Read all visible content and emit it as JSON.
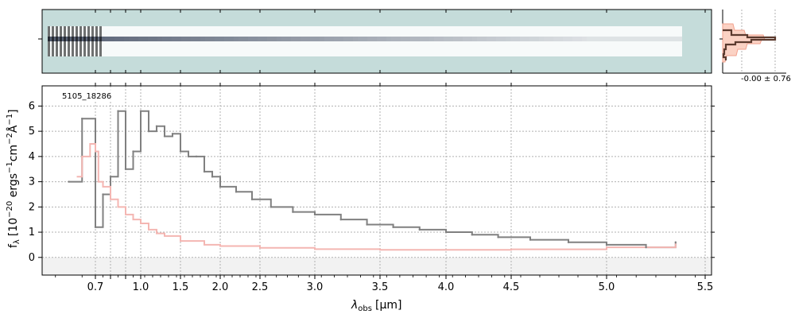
{
  "chart_data": [
    {
      "type": "heatmap",
      "panel": "2d-spectrum",
      "background_color": "#c5dcda",
      "trace_color": "#1e2a44"
    },
    {
      "type": "line",
      "panel": "1d-spectrum",
      "annotation": "5105_18286",
      "xlabel_symbol": "λ",
      "xlabel_sub": "obs",
      "xlabel_unit": "[μm]",
      "ylabel_main": "f",
      "ylabel_sub": "λ",
      "ylabel_unit": "[10",
      "ylabel_exp1": "−20",
      "ylabel_mid": " ergs",
      "ylabel_exp2": "−1",
      "ylabel_cm": "cm",
      "ylabel_exp3": "−2",
      "ylabel_ang": "Å",
      "ylabel_exp4": "−1",
      "ylabel_close": "]",
      "x_ticks": [
        "0.7",
        "0.8",
        "0.9",
        "1.0",
        "1.5",
        "2.0",
        "2.5",
        "3.0",
        "3.5",
        "4.0",
        "4.5",
        "5.0",
        "5.5"
      ],
      "x_tick_labels": [
        "0.7",
        "",
        "",
        "1.0",
        "1.5",
        "2.0",
        "2.5",
        "3.0",
        "3.5",
        "4.0",
        "4.5",
        "5.0",
        "5.5"
      ],
      "y_ticks": [
        "0",
        "1",
        "2",
        "3",
        "4",
        "5",
        "6"
      ],
      "ylim": [
        -0.7,
        6.8
      ],
      "grid": true,
      "series": [
        {
          "role": "data",
          "color": "#808080",
          "x": [
            0.6,
            0.65,
            0.7,
            0.75,
            0.8,
            0.85,
            0.9,
            0.95,
            1.0,
            1.1,
            1.2,
            1.3,
            1.4,
            1.5,
            1.6,
            1.7,
            1.8,
            1.9,
            2.0,
            2.2,
            2.4,
            2.6,
            2.8,
            3.0,
            3.2,
            3.4,
            3.6,
            3.8,
            4.0,
            4.2,
            4.4,
            4.6,
            4.8,
            5.0,
            5.2,
            5.35
          ],
          "y": [
            3.0,
            5.5,
            1.2,
            2.5,
            3.2,
            5.8,
            3.5,
            4.2,
            5.8,
            5.0,
            5.2,
            4.8,
            4.9,
            4.2,
            4.0,
            4.0,
            3.4,
            3.2,
            2.8,
            2.6,
            2.3,
            2.0,
            1.8,
            1.7,
            1.5,
            1.3,
            1.2,
            1.1,
            1.0,
            0.9,
            0.8,
            0.7,
            0.6,
            0.5,
            0.4,
            0.6
          ]
        },
        {
          "role": "model",
          "color": "#f4b6b2",
          "x": [
            0.63,
            0.65,
            0.68,
            0.7,
            0.72,
            0.75,
            0.8,
            0.85,
            0.9,
            0.95,
            1.0,
            1.1,
            1.2,
            1.3,
            1.5,
            1.8,
            2.0,
            2.5,
            3.0,
            3.5,
            4.0,
            4.5,
            5.0,
            5.35
          ],
          "y": [
            3.2,
            4.0,
            4.5,
            4.2,
            3.0,
            2.8,
            2.3,
            2.0,
            1.7,
            1.5,
            1.35,
            1.1,
            0.95,
            0.85,
            0.65,
            0.5,
            0.45,
            0.38,
            0.33,
            0.3,
            0.3,
            0.32,
            0.4,
            0.55
          ]
        }
      ]
    },
    {
      "type": "line",
      "panel": "profile",
      "annotation": "-0.00 ± 0.76"
    }
  ]
}
